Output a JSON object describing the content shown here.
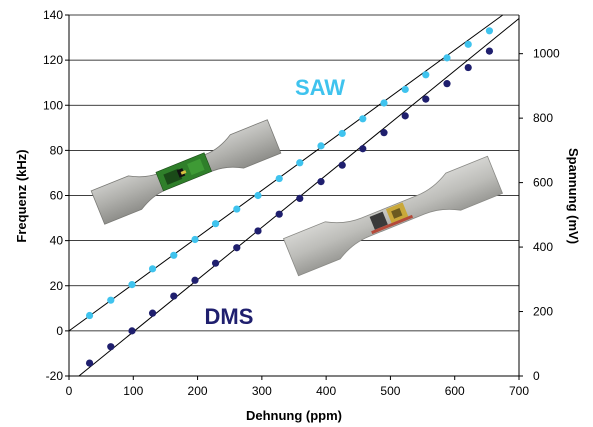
{
  "chart_data": {
    "type": "scatter",
    "x": [
      32,
      65,
      98,
      130,
      163,
      196,
      228,
      261,
      294,
      327,
      359,
      392,
      425,
      457,
      490,
      523,
      555,
      588,
      621,
      654
    ],
    "xlabel": "Dehnung (ppm)",
    "xlim": [
      0,
      700
    ],
    "xticks": [
      "0",
      "100",
      "200",
      "300",
      "400",
      "500",
      "600",
      "700"
    ],
    "ylabel": "Frequenz (kHz)",
    "ylim": [
      -20,
      140
    ],
    "yticks": [
      "-20",
      "0",
      "20",
      "40",
      "60",
      "80",
      "100",
      "120",
      "140"
    ],
    "y2label": "Spannung (mV)",
    "y2lim": [
      0,
      1120
    ],
    "y2ticks": [
      "0",
      "200",
      "400",
      "600",
      "800",
      "1000"
    ],
    "grid": "horizontal",
    "series": [
      {
        "name": "SAW",
        "axis": "left",
        "color": "#3fc3ee",
        "values": [
          6.8,
          13.6,
          20.5,
          27.5,
          33.5,
          40.5,
          47.5,
          54,
          60,
          67.5,
          74.5,
          82,
          87.5,
          94,
          101,
          107,
          113.5,
          121,
          127,
          133
        ]
      },
      {
        "name": "DMS",
        "axis": "right",
        "color": "#1f1f6e",
        "values": [
          40,
          91,
          140,
          195,
          248,
          297,
          350,
          398,
          450,
          502,
          551,
          603,
          654,
          705,
          755,
          807,
          859,
          907,
          957,
          1008
        ]
      }
    ],
    "fit_lines": [
      {
        "axis": "left",
        "slope": 0.2075,
        "intercept": 0,
        "color": "#000000"
      },
      {
        "axis": "right",
        "slope": 1.62,
        "intercept": -25,
        "color": "#000000"
      }
    ]
  }
}
